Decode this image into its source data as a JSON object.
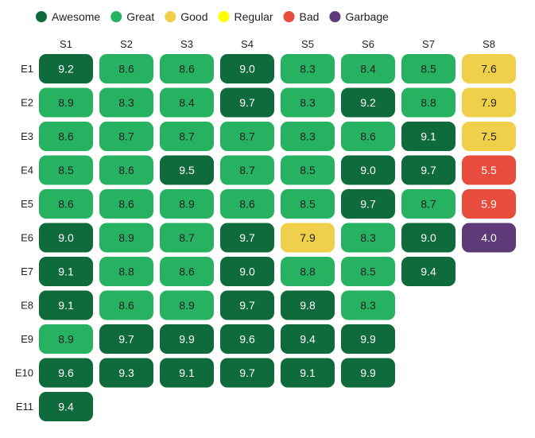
{
  "chart_data": {
    "type": "heatmap",
    "title": "",
    "legend": [
      {
        "name": "Awesome",
        "color": "#0f6b3c",
        "text_color": "#ffffff"
      },
      {
        "name": "Great",
        "color": "#27b262",
        "text_color": "#222222"
      },
      {
        "name": "Good",
        "color": "#f0d04a",
        "text_color": "#222222"
      },
      {
        "name": "Regular",
        "color": "#ffff00",
        "text_color": "#222222"
      },
      {
        "name": "Bad",
        "color": "#e74c3c",
        "text_color": "#ffffff"
      },
      {
        "name": "Garbage",
        "color": "#5e3a78",
        "text_color": "#ffffff"
      }
    ],
    "columns": [
      "S1",
      "S2",
      "S3",
      "S4",
      "S5",
      "S6",
      "S7",
      "S8"
    ],
    "rows": [
      {
        "label": "E1",
        "values": [
          9.2,
          8.6,
          8.6,
          9.0,
          8.3,
          8.4,
          8.5,
          7.6
        ],
        "classes": [
          "Awesome",
          "Great",
          "Great",
          "Awesome",
          "Great",
          "Great",
          "Great",
          "Good"
        ]
      },
      {
        "label": "E2",
        "values": [
          8.9,
          8.3,
          8.4,
          9.7,
          8.3,
          9.2,
          8.8,
          7.9
        ],
        "classes": [
          "Great",
          "Great",
          "Great",
          "Awesome",
          "Great",
          "Awesome",
          "Great",
          "Good"
        ]
      },
      {
        "label": "E3",
        "values": [
          8.6,
          8.7,
          8.7,
          8.7,
          8.3,
          8.6,
          9.1,
          7.5
        ],
        "classes": [
          "Great",
          "Great",
          "Great",
          "Great",
          "Great",
          "Great",
          "Awesome",
          "Good"
        ]
      },
      {
        "label": "E4",
        "values": [
          8.5,
          8.6,
          9.5,
          8.7,
          8.5,
          9.0,
          9.7,
          5.5
        ],
        "classes": [
          "Great",
          "Great",
          "Awesome",
          "Great",
          "Great",
          "Awesome",
          "Awesome",
          "Bad"
        ]
      },
      {
        "label": "E5",
        "values": [
          8.6,
          8.6,
          8.9,
          8.6,
          8.5,
          9.7,
          8.7,
          5.9
        ],
        "classes": [
          "Great",
          "Great",
          "Great",
          "Great",
          "Great",
          "Awesome",
          "Great",
          "Bad"
        ]
      },
      {
        "label": "E6",
        "values": [
          9.0,
          8.9,
          8.7,
          9.7,
          7.9,
          8.3,
          9.0,
          4.0
        ],
        "classes": [
          "Awesome",
          "Great",
          "Great",
          "Awesome",
          "Good",
          "Great",
          "Awesome",
          "Garbage"
        ]
      },
      {
        "label": "E7",
        "values": [
          9.1,
          8.8,
          8.6,
          9.0,
          8.8,
          8.5,
          9.4
        ],
        "classes": [
          "Awesome",
          "Great",
          "Great",
          "Awesome",
          "Great",
          "Great",
          "Awesome"
        ]
      },
      {
        "label": "E8",
        "values": [
          9.1,
          8.6,
          8.9,
          9.7,
          9.8,
          8.3
        ],
        "classes": [
          "Awesome",
          "Great",
          "Great",
          "Awesome",
          "Awesome",
          "Great"
        ]
      },
      {
        "label": "E9",
        "values": [
          8.9,
          9.7,
          9.9,
          9.6,
          9.4,
          9.9
        ],
        "classes": [
          "Great",
          "Awesome",
          "Awesome",
          "Awesome",
          "Awesome",
          "Awesome"
        ]
      },
      {
        "label": "E10",
        "values": [
          9.6,
          9.3,
          9.1,
          9.7,
          9.1,
          9.9
        ],
        "classes": [
          "Awesome",
          "Awesome",
          "Awesome",
          "Awesome",
          "Awesome",
          "Awesome"
        ]
      },
      {
        "label": "E11",
        "values": [
          9.4
        ],
        "classes": [
          "Awesome"
        ]
      }
    ]
  }
}
